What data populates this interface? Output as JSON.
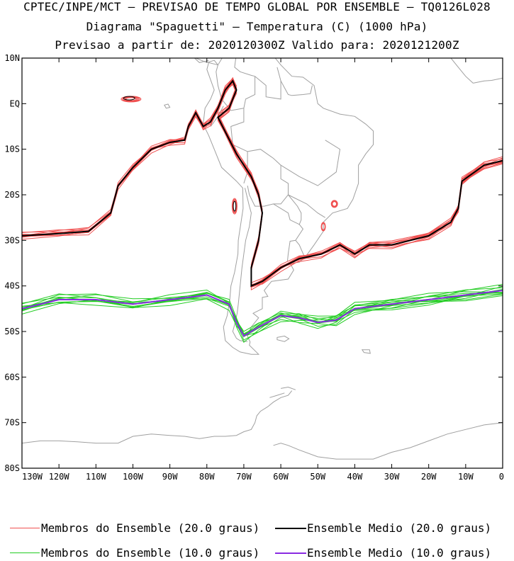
{
  "header": {
    "line1": "CPTEC/INPE/MCT – PREVISAO DE TEMPO GLOBAL POR ENSEMBLE – TQ0126L028",
    "line2": "Diagrama \"Spaguetti\" – Temperatura (C) (1000 hPa)",
    "line3": "Previsao a partir de: 2020120300Z  Valido para: 2020121200Z"
  },
  "map": {
    "lat_labels": [
      "10N",
      "EQ",
      "10S",
      "20S",
      "30S",
      "40S",
      "50S",
      "60S",
      "70S",
      "80S"
    ],
    "lat_values": [
      10,
      0,
      -10,
      -20,
      -30,
      -40,
      -50,
      -60,
      -70,
      -80
    ],
    "lon_labels": [
      "130W",
      "120W",
      "110W",
      "100W",
      "90W",
      "80W",
      "70W",
      "60W",
      "50W",
      "40W",
      "30W",
      "20W",
      "10W",
      "0"
    ],
    "lon_values": [
      -130,
      -120,
      -110,
      -100,
      -90,
      -80,
      -70,
      -60,
      -50,
      -40,
      -30,
      -20,
      -10,
      0
    ],
    "lon_range": [
      -130,
      0
    ],
    "lat_range": [
      -80,
      10
    ],
    "coast_color": "#a0a0a0",
    "ensemble_20_mean": [
      [
        -130,
        -29
      ],
      [
        -120,
        -28.5
      ],
      [
        -112,
        -28
      ],
      [
        -106,
        -24
      ],
      [
        -104,
        -18
      ],
      [
        -100,
        -14
      ],
      [
        -95,
        -10
      ],
      [
        -90,
        -8.5
      ],
      [
        -86,
        -8
      ],
      [
        -85,
        -5
      ],
      [
        -83,
        -2
      ],
      [
        -81,
        -5
      ],
      [
        -79,
        -4
      ],
      [
        -77,
        -1
      ],
      [
        -75,
        3
      ],
      [
        -73,
        5
      ],
      [
        -72,
        3
      ],
      [
        -74,
        -1
      ],
      [
        -77,
        -3
      ],
      [
        -72,
        -11
      ],
      [
        -68,
        -16
      ],
      [
        -66,
        -20
      ],
      [
        -65,
        -24
      ],
      [
        -66,
        -30
      ],
      [
        -68,
        -36
      ],
      [
        -68,
        -40
      ],
      [
        -65,
        -39
      ],
      [
        -60,
        -36
      ],
      [
        -55,
        -34
      ],
      [
        -49,
        -33
      ],
      [
        -44,
        -31
      ],
      [
        -40,
        -33
      ],
      [
        -36,
        -31
      ],
      [
        -30,
        -31
      ],
      [
        -20,
        -29
      ],
      [
        -14,
        -26
      ],
      [
        -12,
        -23
      ],
      [
        -11,
        -17
      ],
      [
        -5,
        -13.5
      ],
      [
        0,
        -12.5
      ]
    ],
    "ensemble_10_mean": [
      [
        -130,
        -45
      ],
      [
        -120,
        -43
      ],
      [
        -110,
        -43
      ],
      [
        -100,
        -44
      ],
      [
        -90,
        -43
      ],
      [
        -80,
        -42
      ],
      [
        -74,
        -44
      ],
      [
        -72,
        -48
      ],
      [
        -70,
        -51
      ],
      [
        -66,
        -49
      ],
      [
        -60,
        -46.5
      ],
      [
        -55,
        -47
      ],
      [
        -50,
        -48
      ],
      [
        -45,
        -47.5
      ],
      [
        -40,
        -45
      ],
      [
        -30,
        -44
      ],
      [
        -20,
        -43
      ],
      [
        -10,
        -42
      ],
      [
        0,
        -41
      ]
    ],
    "member_20_color": "#f05050",
    "mean_20_color": "#000000",
    "member_10_color": "#22cc22",
    "mean_10_color": "#8a2be2"
  },
  "legend": {
    "item1": "Membros do Ensemble (20.0 graus)",
    "item2": "Ensemble Medio (20.0 graus)",
    "item3": "Membros do Ensemble (10.0 graus)",
    "item4": "Ensemble Medio (10.0 graus)"
  }
}
